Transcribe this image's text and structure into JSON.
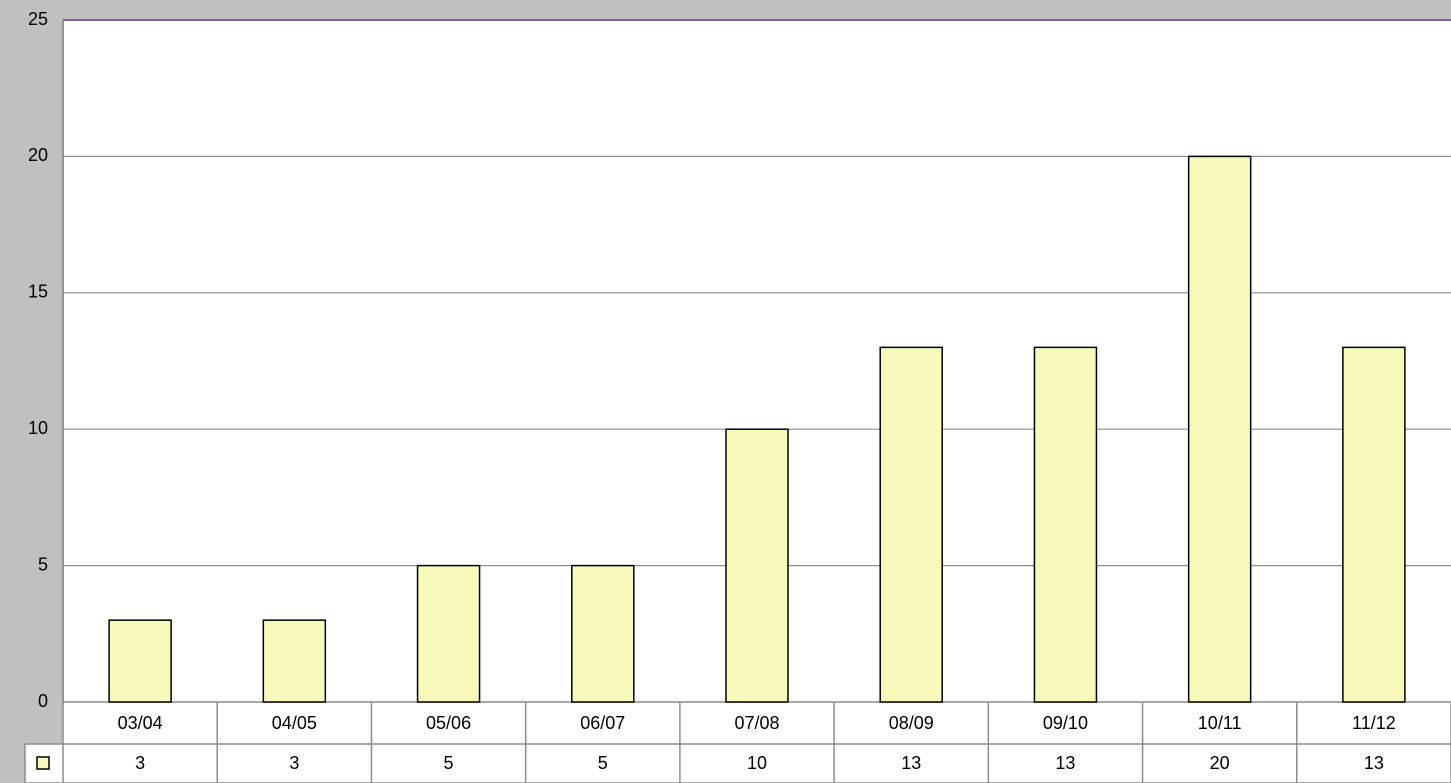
{
  "chart_data": {
    "type": "bar",
    "categories": [
      "03/04",
      "04/05",
      "05/06",
      "06/07",
      "07/08",
      "08/09",
      "09/10",
      "10/11",
      "11/12"
    ],
    "values": [
      3,
      3,
      5,
      5,
      10,
      13,
      13,
      20,
      13
    ],
    "color": "#f8fabb",
    "ylim": [
      0,
      25
    ],
    "yticks": [
      0,
      5,
      10,
      15,
      20,
      25
    ],
    "grid": true
  }
}
